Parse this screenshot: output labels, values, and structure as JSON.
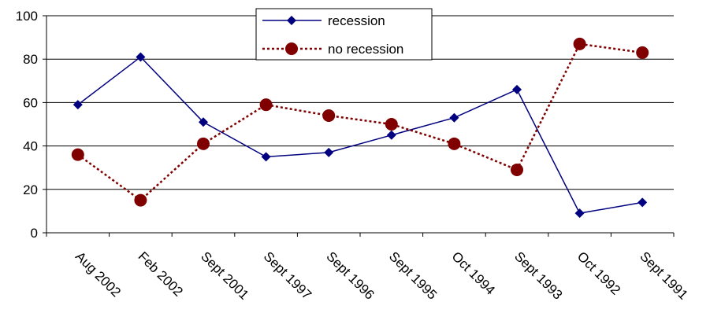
{
  "chart_data": {
    "type": "line",
    "categories": [
      "Aug 2002",
      "Feb 2002",
      "Sept 2001",
      "Sept 1997",
      "Sept 1996",
      "Sept 1995",
      "Oct 1994",
      "Sept 1993",
      "Oct 1992",
      "Sept 1991"
    ],
    "series": [
      {
        "name": "recession",
        "values": [
          59,
          81,
          51,
          35,
          37,
          45,
          53,
          66,
          9,
          14
        ],
        "color": "#000080",
        "line_style": "solid",
        "marker": "diamond"
      },
      {
        "name": "no recession",
        "values": [
          36,
          15,
          41,
          59,
          54,
          50,
          41,
          29,
          87,
          83
        ],
        "color": "#800000",
        "line_style": "dotted",
        "marker": "circle"
      }
    ],
    "title": "",
    "xlabel": "",
    "ylabel": "",
    "ylim": [
      0,
      100
    ],
    "yticks": [
      0,
      20,
      40,
      60,
      80,
      100
    ],
    "grid": "horizontal",
    "legend_position": "top-center"
  }
}
